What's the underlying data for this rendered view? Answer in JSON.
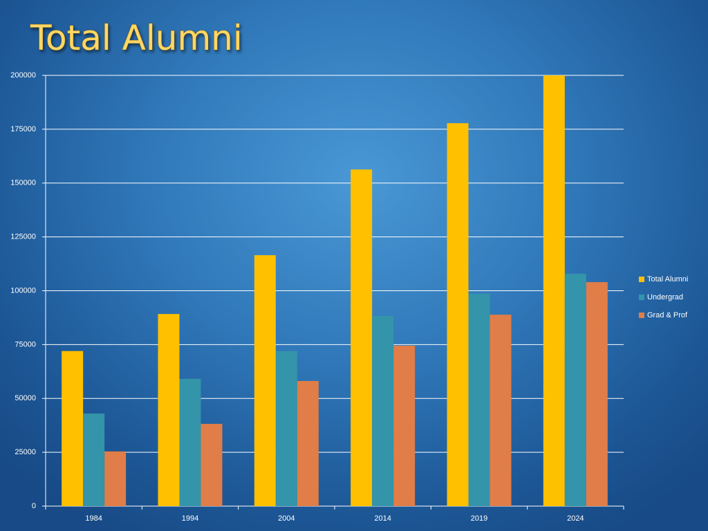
{
  "chart_data": {
    "type": "bar",
    "title": "Total Alumni",
    "categories": [
      "1984",
      "1994",
      "2004",
      "2014",
      "2019",
      "2024"
    ],
    "series": [
      {
        "name": "Total Alumni",
        "color": "#ffc000",
        "values": [
          72000,
          89200,
          116500,
          156300,
          177800,
          200000
        ]
      },
      {
        "name": "Undergrad",
        "color": "#3394aa",
        "values": [
          43000,
          59100,
          72000,
          88300,
          98600,
          107900
        ]
      },
      {
        "name": "Grad & Prof",
        "color": "#e07d48",
        "values": [
          25400,
          38200,
          58100,
          74500,
          88900,
          104000
        ]
      }
    ],
    "ylim": [
      0,
      200000
    ],
    "yticks": [
      0,
      25000,
      50000,
      75000,
      100000,
      125000,
      150000,
      175000,
      200000
    ],
    "grid": true,
    "legend": "right"
  }
}
